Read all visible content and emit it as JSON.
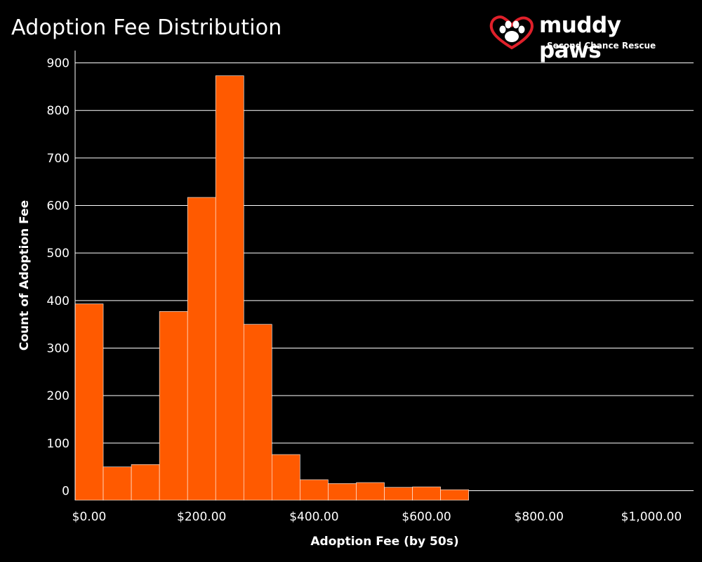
{
  "title": "Adoption Fee Distribution",
  "logo": {
    "name": "muddy paws",
    "subtitle": "Second Chance Rescue"
  },
  "colors": {
    "background": "#000000",
    "bar": "#ff5a00",
    "bar_border": "#ffffff",
    "grid": "#ffffff",
    "logo_heart": "#e0202a"
  },
  "icons": [
    "heart-paw-logo-icon"
  ],
  "chart_data": {
    "type": "bar",
    "title": "Adoption Fee Distribution",
    "xlabel": "Adoption Fee (by 50s)",
    "ylabel": "Count of Adoption Fee",
    "bin_width": 50,
    "bins_start": [
      0,
      50,
      100,
      150,
      200,
      250,
      300,
      350,
      400,
      450,
      500,
      550,
      600,
      650,
      700,
      750
    ],
    "values": [
      393,
      50,
      55,
      377,
      617,
      873,
      350,
      76,
      23,
      15,
      17,
      7,
      8,
      2,
      0,
      0
    ],
    "yticks": [
      0,
      100,
      200,
      300,
      400,
      500,
      600,
      700,
      800,
      900
    ],
    "xticks": [
      "$0.00",
      "$200.00",
      "$400.00",
      "$600.00",
      "$800.00",
      "$1,000.00"
    ],
    "xtick_values": [
      0,
      200,
      400,
      600,
      800,
      1000
    ],
    "ylim": [
      -20,
      920
    ],
    "xlim": [
      -25,
      1075
    ],
    "grid": "horizontal",
    "legend": "none"
  }
}
